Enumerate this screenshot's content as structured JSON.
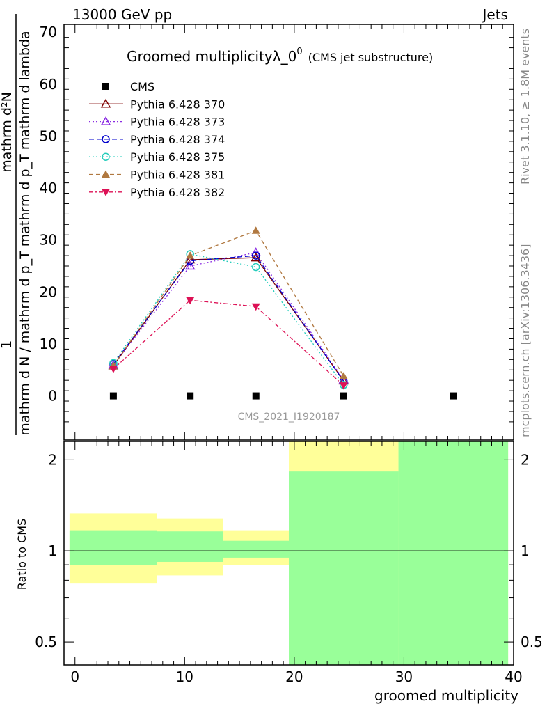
{
  "header": {
    "left": "13000 GeV pp",
    "right": "Jets"
  },
  "side": {
    "rivet": "Rivet 3.1.10, ≥ 1.8M events",
    "mcplots": "mcplots.cern.ch [arXiv:1306.3436]"
  },
  "colors": {
    "cms": "#000000",
    "p370": "#7f0000",
    "p373": "#8a2be2",
    "p374": "#0000cc",
    "p375": "#22ccbb",
    "p381": "#b07840",
    "p382": "#dd1155",
    "band_yellow": "#ffff99",
    "band_green": "#99ff99"
  },
  "chart_data": [
    {
      "type": "line",
      "title_main": "Groomed multiplicityλ_0",
      "title_sup": "0",
      "title_sub": "(CMS jet substructure)",
      "ylabel_numer": "mathrm d²N",
      "ylabel_denom": "mathrm d N / mathrm d p_T mathrm d p_T mathrm d lambda",
      "ylabel_prefix": "1",
      "ylim": [
        -8.5,
        71.5
      ],
      "yticks": [
        0,
        10,
        20,
        30,
        40,
        50,
        60,
        70
      ],
      "xlim": [
        -1,
        40
      ],
      "watermark": "CMS_2021_I1920187",
      "legend_position": "top-left",
      "series": [
        {
          "name": "CMS",
          "style": "square",
          "x": [
            3.5,
            10.5,
            16.5,
            24.5,
            34.5
          ],
          "y": [
            0,
            0,
            0,
            0,
            0
          ]
        },
        {
          "name": "Pythia 6.428 370",
          "style": "tri-up-open",
          "x": [
            3.5,
            10.5,
            16.5,
            24.5
          ],
          "y": [
            5.8,
            26.2,
            26.6,
            2.9
          ]
        },
        {
          "name": "Pythia 6.428 373",
          "style": "tri-up-open",
          "x": [
            3.5,
            10.5,
            16.5,
            24.5
          ],
          "y": [
            5.9,
            25.0,
            27.6,
            3.1
          ]
        },
        {
          "name": "Pythia 6.428 374",
          "style": "circle-open",
          "x": [
            3.5,
            10.5,
            16.5,
            24.5
          ],
          "y": [
            6.1,
            26.0,
            27.0,
            2.8
          ]
        },
        {
          "name": "Pythia 6.428 375",
          "style": "circle-open",
          "x": [
            3.5,
            10.5,
            16.5,
            24.5
          ],
          "y": [
            6.3,
            27.3,
            24.8,
            2.1
          ]
        },
        {
          "name": "Pythia 6.428 381",
          "style": "tri-up-filled",
          "x": [
            3.5,
            10.5,
            16.5,
            24.5
          ],
          "y": [
            5.8,
            27.0,
            31.8,
            3.8
          ]
        },
        {
          "name": "Pythia 6.428 382",
          "style": "tri-down-filled",
          "x": [
            3.5,
            10.5,
            16.5,
            24.5
          ],
          "y": [
            5.2,
            18.4,
            17.2,
            2.0
          ]
        }
      ]
    },
    {
      "type": "area",
      "ylabel": "Ratio to CMS",
      "yscale": "log",
      "ylim": [
        0.42,
        2.3
      ],
      "yticks": [
        0.5,
        1,
        2
      ],
      "ytick_labels": [
        "0.5",
        "1",
        "2"
      ],
      "xlim": [
        -1,
        40
      ],
      "xticks": [
        0,
        10,
        20,
        30,
        40
      ],
      "xtick_labels": [
        "0",
        "10",
        "20",
        "30",
        "40"
      ],
      "xlabel": "groomed multiplicity",
      "bands": [
        {
          "x0": -0.5,
          "x1": 7.5,
          "yellow": [
            0.78,
            1.33
          ],
          "green": [
            0.9,
            1.17
          ]
        },
        {
          "x0": 7.5,
          "x1": 13.5,
          "yellow": [
            0.83,
            1.28
          ],
          "green": [
            0.92,
            1.16
          ]
        },
        {
          "x0": 13.5,
          "x1": 19.5,
          "yellow": [
            0.9,
            1.17
          ],
          "green": [
            0.95,
            1.08
          ]
        },
        {
          "x0": 19.5,
          "x1": 29.5,
          "yellow": [
            0.42,
            2.3
          ],
          "green": [
            0.42,
            1.83
          ]
        },
        {
          "x0": 29.5,
          "x1": 39.5,
          "yellow": [
            0.42,
            2.3
          ],
          "green": [
            0.42,
            2.3
          ]
        }
      ],
      "reference_line": 1
    }
  ]
}
